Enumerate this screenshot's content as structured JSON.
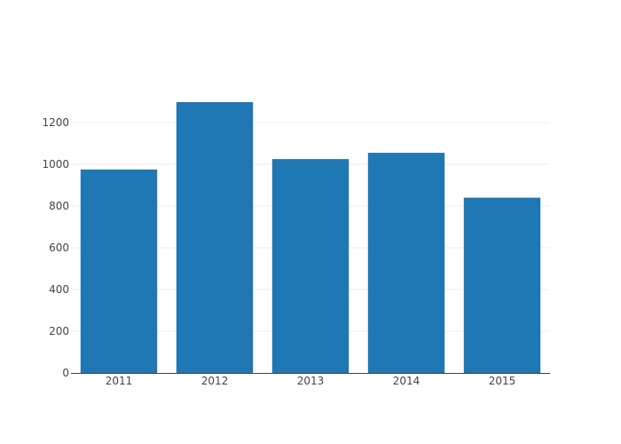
{
  "chart_data": {
    "type": "bar",
    "title": "",
    "xlabel": "",
    "ylabel": "",
    "categories": [
      "2011",
      "2012",
      "2013",
      "2014",
      "2015"
    ],
    "values": [
      975,
      1298,
      1025,
      1055,
      840
    ],
    "ylim": [
      0,
      1300
    ],
    "yticks": [
      0,
      200,
      400,
      600,
      800,
      1000,
      1200
    ],
    "ytick_labels": [
      "0",
      "200",
      "400",
      "600",
      "800",
      "1000",
      "1200"
    ],
    "grid": true,
    "legend": "none",
    "bar_color": "#1f77b4",
    "grid_color": "#eeeeee",
    "axis_color": "#444444"
  }
}
